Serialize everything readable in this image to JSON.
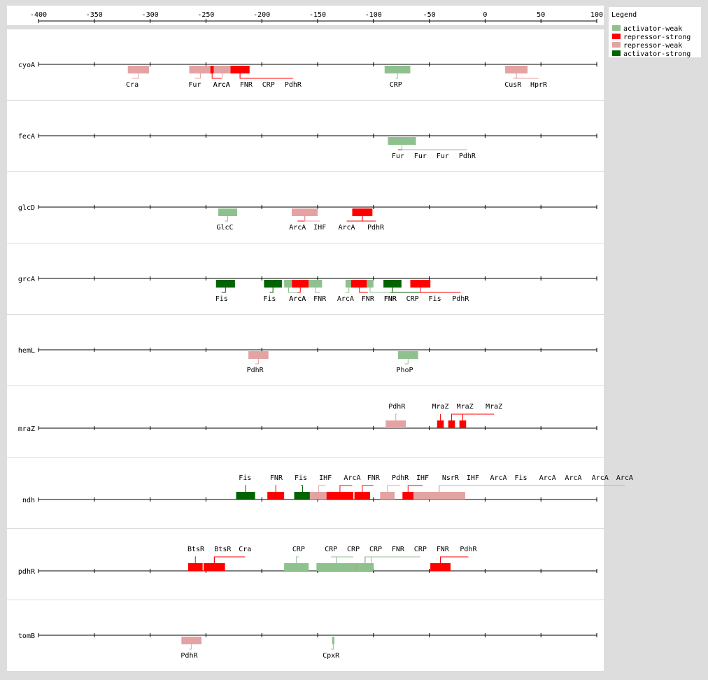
{
  "colors": {
    "activator-weak": "#8fc18f",
    "repressor-strong": "#ff0000",
    "repressor-weak": "#e4a3a3",
    "activator-strong": "#006400"
  },
  "legend": {
    "title": "Legend",
    "items": [
      {
        "type": "activator-weak",
        "label": "activator-weak"
      },
      {
        "type": "repressor-strong",
        "label": "repressor-strong"
      },
      {
        "type": "repressor-weak",
        "label": "repressor-weak"
      },
      {
        "type": "activator-strong",
        "label": "activator-strong"
      }
    ]
  },
  "axis": {
    "min": -400,
    "max": 100,
    "ticks": [
      "-400",
      "-350",
      "-300",
      "-250",
      "-200",
      "-150",
      "-100",
      "-50",
      "0",
      "50",
      "100"
    ]
  },
  "tracks": [
    {
      "gene": "cyoA",
      "labels_above": false,
      "sites": [
        {
          "tf": "Cra",
          "type": "repressor-weak",
          "start": -320,
          "end": -301,
          "label_x": -316
        },
        {
          "tf": "Fur",
          "type": "repressor-weak",
          "start": -265,
          "end": -245,
          "label_x": -260
        },
        {
          "tf": "ArcA",
          "type": "repressor-strong",
          "start": -246,
          "end": -243,
          "label_x": -236
        },
        {
          "tf": "ArcA",
          "type": "repressor-weak",
          "start": -243,
          "end": -228,
          "label_x": -236
        },
        {
          "tf": "FNR",
          "type": "repressor-strong",
          "start": -228,
          "end": -211,
          "label_x": -214
        },
        {
          "tf": "CRP",
          "type": "repressor-weak",
          "start": -228,
          "end": -211,
          "label_x": -194
        },
        {
          "tf": "PdhR",
          "type": "repressor-strong",
          "start": -228,
          "end": -211,
          "label_x": -172
        },
        {
          "tf": "CRP",
          "type": "activator-weak",
          "start": -90,
          "end": -67,
          "label_x": -80
        },
        {
          "tf": "CusR",
          "type": "repressor-weak",
          "start": 18,
          "end": 38,
          "label_x": 25
        },
        {
          "tf": "HprR",
          "type": "repressor-weak",
          "start": 18,
          "end": 38,
          "label_x": 48
        }
      ]
    },
    {
      "gene": "fecA",
      "labels_above": false,
      "sites": [
        {
          "tf": "Fur",
          "type": "repressor-strong",
          "start": -87,
          "end": -62,
          "label_x": -78
        },
        {
          "tf": "Fur",
          "type": "repressor-strong",
          "start": -87,
          "end": -62,
          "label_x": -58
        },
        {
          "tf": "Fur",
          "type": "repressor-strong",
          "start": -87,
          "end": -62,
          "label_x": -38
        },
        {
          "tf": "PdhR",
          "type": "activator-weak",
          "start": -87,
          "end": -62,
          "label_x": -16
        }
      ]
    },
    {
      "gene": "glcD",
      "labels_above": false,
      "sites": [
        {
          "tf": "GlcC",
          "type": "activator-weak",
          "start": -239,
          "end": -222,
          "label_x": -233
        },
        {
          "tf": "ArcA",
          "type": "repressor-strong",
          "start": -173,
          "end": -150,
          "label_x": -168
        },
        {
          "tf": "IHF",
          "type": "repressor-weak",
          "start": -173,
          "end": -150,
          "label_x": -148
        },
        {
          "tf": "ArcA",
          "type": "repressor-strong",
          "start": -119,
          "end": -101,
          "label_x": -124
        },
        {
          "tf": "PdhR",
          "type": "repressor-strong",
          "start": -119,
          "end": -101,
          "label_x": -98
        }
      ]
    },
    {
      "gene": "grcA",
      "labels_above": false,
      "sites": [
        {
          "tf": "Fis",
          "type": "activator-strong",
          "start": -241,
          "end": -224,
          "label_x": -236
        },
        {
          "tf": "Fis",
          "type": "activator-strong",
          "start": -198,
          "end": -182,
          "label_x": -193
        },
        {
          "tf": "ArcA",
          "type": "activator-weak",
          "start": -180,
          "end": -172,
          "label_x": -168
        },
        {
          "tf": "ArcA",
          "type": "repressor-strong",
          "start": -173,
          "end": -158,
          "label_x": -168
        },
        {
          "tf": "FNR",
          "type": "activator-weak",
          "start": -158,
          "end": -146,
          "label_x": -148
        },
        {
          "tf": "ArcA",
          "type": "activator-weak",
          "start": -125,
          "end": -119,
          "label_x": -125
        },
        {
          "tf": "FNR",
          "type": "repressor-strong",
          "start": -120,
          "end": -105,
          "label_x": -105
        },
        {
          "tf": "FNR",
          "type": "activator-weak",
          "start": -106,
          "end": -100,
          "label_x": -85
        },
        {
          "tf": "FNR",
          "type": "activator-strong",
          "start": -91,
          "end": -75,
          "label_x": -85
        },
        {
          "tf": "CRP",
          "type": "activator-weak",
          "start": -91,
          "end": -75,
          "label_x": -65
        },
        {
          "tf": "Fis",
          "type": "activator-strong",
          "start": -91,
          "end": -75,
          "label_x": -45
        },
        {
          "tf": "PdhR",
          "type": "repressor-strong",
          "start": -67,
          "end": -49,
          "label_x": -22
        }
      ]
    },
    {
      "gene": "hemL",
      "labels_above": false,
      "sites": [
        {
          "tf": "PdhR",
          "type": "repressor-weak",
          "start": -212,
          "end": -194,
          "label_x": -206
        },
        {
          "tf": "PhoP",
          "type": "activator-weak",
          "start": -78,
          "end": -60,
          "label_x": -72
        }
      ]
    },
    {
      "gene": "mraZ",
      "labels_above": true,
      "sites": [
        {
          "tf": "PdhR",
          "type": "repressor-weak",
          "start": -89,
          "end": -71,
          "label_x": -79
        },
        {
          "tf": "MraZ",
          "type": "repressor-strong",
          "start": -43,
          "end": -37,
          "label_x": -40
        },
        {
          "tf": "MraZ",
          "type": "repressor-strong",
          "start": -33,
          "end": -27,
          "label_x": -18
        },
        {
          "tf": "MraZ",
          "type": "repressor-strong",
          "start": -23,
          "end": -17,
          "label_x": 8
        }
      ]
    },
    {
      "gene": "ndh",
      "labels_above": true,
      "sites": [
        {
          "tf": "Fis",
          "type": "activator-strong",
          "start": -223,
          "end": -206,
          "label_x": -215
        },
        {
          "tf": "FNR",
          "type": "repressor-strong",
          "start": -195,
          "end": -180,
          "label_x": -187
        },
        {
          "tf": "Fis",
          "type": "activator-strong",
          "start": -171,
          "end": -156,
          "label_x": -165
        },
        {
          "tf": "IHF",
          "type": "repressor-weak",
          "start": -157,
          "end": -141,
          "label_x": -143
        },
        {
          "tf": "ArcA",
          "type": "repressor-strong",
          "start": -142,
          "end": -118,
          "label_x": -119
        },
        {
          "tf": "FNR",
          "type": "repressor-strong",
          "start": -117,
          "end": -103,
          "label_x": -100
        },
        {
          "tf": "PdhR",
          "type": "repressor-weak",
          "start": -94,
          "end": -81,
          "label_x": -76
        },
        {
          "tf": "IHF",
          "type": "repressor-strong",
          "start": -74,
          "end": -64,
          "label_x": -56
        },
        {
          "tf": "NsrR",
          "type": "repressor-weak",
          "start": -64,
          "end": -18,
          "label_x": -31
        },
        {
          "tf": "IHF",
          "type": "repressor-weak",
          "start": -64,
          "end": -18,
          "label_x": -11
        },
        {
          "tf": "ArcA",
          "type": "repressor-weak",
          "start": -64,
          "end": -18,
          "label_x": 12
        },
        {
          "tf": "Fis",
          "type": "repressor-weak",
          "start": -64,
          "end": -18,
          "label_x": 32
        },
        {
          "tf": "ArcA",
          "type": "repressor-weak",
          "start": -64,
          "end": -18,
          "label_x": 56
        },
        {
          "tf": "ArcA",
          "type": "repressor-weak",
          "start": -64,
          "end": -18,
          "label_x": 79
        },
        {
          "tf": "ArcA",
          "type": "repressor-weak",
          "start": -64,
          "end": -18,
          "label_x": 103
        },
        {
          "tf": "ArcA",
          "type": "repressor-weak",
          "start": -64,
          "end": -18,
          "label_x": 125
        }
      ]
    },
    {
      "gene": "pdhR",
      "labels_above": true,
      "sites": [
        {
          "tf": "BtsR",
          "type": "repressor-strong",
          "start": -266,
          "end": -253,
          "label_x": -259
        },
        {
          "tf": "BtsR",
          "type": "repressor-strong",
          "start": -252,
          "end": -233,
          "label_x": -235
        },
        {
          "tf": "Cra",
          "type": "repressor-strong",
          "start": -252,
          "end": -233,
          "label_x": -215
        },
        {
          "tf": "CRP",
          "type": "activator-weak",
          "start": -180,
          "end": -158,
          "label_x": -167
        },
        {
          "tf": "CRP",
          "type": "activator-weak",
          "start": -151,
          "end": -115,
          "label_x": -138
        },
        {
          "tf": "CRP",
          "type": "activator-weak",
          "start": -151,
          "end": -115,
          "label_x": -118
        },
        {
          "tf": "CRP",
          "type": "activator-weak",
          "start": -104,
          "end": -100,
          "label_x": -98
        },
        {
          "tf": "FNR",
          "type": "repressor-strong",
          "start": -115,
          "end": -100,
          "label_x": -78
        },
        {
          "tf": "CRP",
          "type": "activator-weak",
          "start": -115,
          "end": -100,
          "label_x": -58
        },
        {
          "tf": "FNR",
          "type": "repressor-strong",
          "start": -49,
          "end": -31,
          "label_x": -38
        },
        {
          "tf": "PdhR",
          "type": "repressor-strong",
          "start": -49,
          "end": -31,
          "label_x": -15
        }
      ]
    },
    {
      "gene": "tomB",
      "labels_above": false,
      "sites": [
        {
          "tf": "PdhR",
          "type": "repressor-weak",
          "start": -272,
          "end": -254,
          "label_x": -265
        },
        {
          "tf": "CpxR",
          "type": "activator-weak",
          "start": -137,
          "end": -135,
          "label_x": -138
        }
      ]
    }
  ]
}
